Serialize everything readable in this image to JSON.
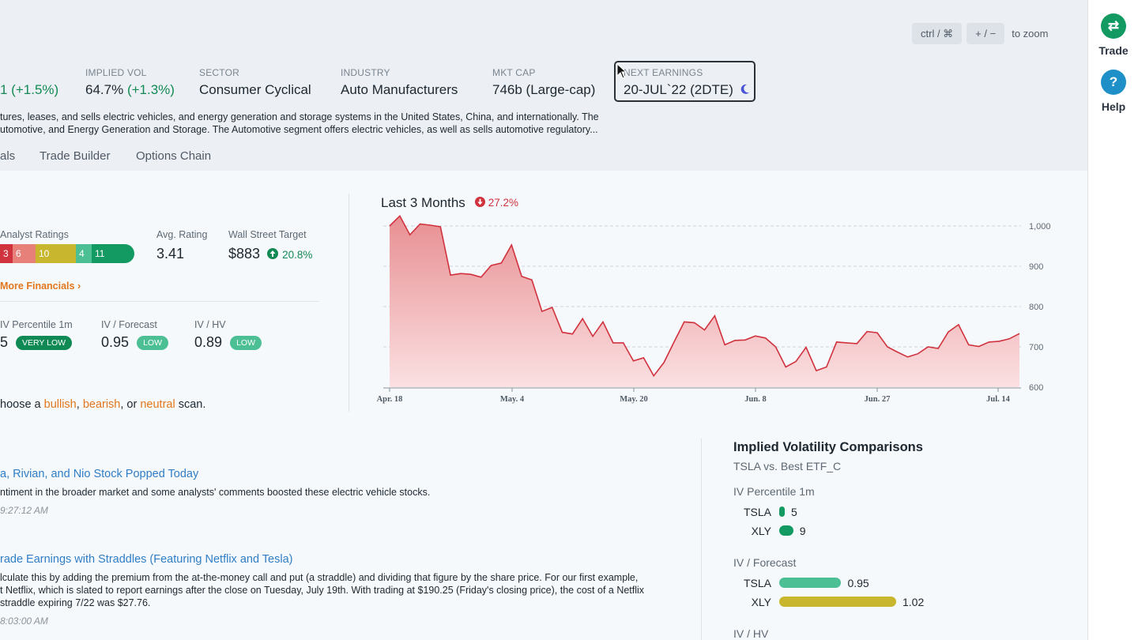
{
  "zoom_hint": {
    "key1": "ctrl / ⌘",
    "key2": "+ / −",
    "text": "to zoom"
  },
  "right_rail": {
    "trade": "Trade",
    "help": "Help",
    "trade_icon": "swap-arrows-icon",
    "help_icon": "question-icon"
  },
  "stats": {
    "price_change": "1 (+1.5%)",
    "iv_label": "IMPLIED VOL",
    "iv_value": "64.7%",
    "iv_change": "(+1.3%)",
    "sector_label": "SECTOR",
    "sector_value": "Consumer Cyclical",
    "industry_label": "INDUSTRY",
    "industry_value": "Auto Manufacturers",
    "mktcap_label": "MKT CAP",
    "mktcap_value": "746b (Large-cap)",
    "earnings_label": "NEXT EARNINGS",
    "earnings_value": "20-JUL`22 (2DTE)"
  },
  "description": {
    "line1": "tures, leases, and sells electric vehicles, and energy generation and storage systems in the United States, China, and internationally. The",
    "line2": "utomotive, and Energy Generation and Storage. The Automotive segment offers electric vehicles, as well as sells automotive regulatory..."
  },
  "tabs": [
    "als",
    "Trade Builder",
    "Options Chain"
  ],
  "summary": {
    "analyst_label": "Analyst Ratings",
    "ratings": [
      {
        "value": "3",
        "color": "#d0323e"
      },
      {
        "value": "6",
        "color": "#e8807a"
      },
      {
        "value": "10",
        "color": "#c9b62f"
      },
      {
        "value": "4",
        "color": "#4cbf94"
      },
      {
        "value": "11",
        "color": "#139a62"
      }
    ],
    "avg_label": "Avg. Rating",
    "avg_value": "3.41",
    "target_label": "Wall Street Target",
    "target_value": "$883",
    "target_change": "20.8%",
    "more_financials": "More Financials",
    "ivp_label": "IV Percentile 1m",
    "ivp_value": "5",
    "ivp_badge": "VERY LOW",
    "ivf_label": "IV / Forecast",
    "ivf_value": "0.95",
    "ivf_badge": "LOW",
    "ivhv_label": "IV / HV",
    "ivhv_value": "0.89",
    "ivhv_badge": "LOW",
    "scan_prefix": "hoose a ",
    "scan_bullish": "bullish",
    "scan_comma": ", ",
    "scan_bearish": "bearish",
    "scan_or": ", or ",
    "scan_neutral": "neutral",
    "scan_suffix": " scan."
  },
  "chart_data": {
    "type": "area",
    "title": "Last 3 Months",
    "change": "27.2%",
    "x_tick_labels": [
      "Apr. 18",
      "May. 4",
      "May. 20",
      "Jun. 8",
      "Jun. 27",
      "Jul. 14"
    ],
    "y_tick_labels": [
      "1,000",
      "900",
      "800",
      "700",
      "600"
    ],
    "ylim": [
      600,
      1025
    ],
    "grid": true,
    "color": "#d0323e",
    "values": [
      1000,
      1025,
      978,
      1005,
      1002,
      998,
      878,
      882,
      880,
      873,
      902,
      908,
      953,
      875,
      866,
      788,
      798,
      736,
      732,
      770,
      726,
      762,
      710,
      710,
      665,
      673,
      628,
      661,
      712,
      762,
      760,
      742,
      777,
      705,
      716,
      717,
      727,
      722,
      700,
      650,
      664,
      699,
      641,
      650,
      712,
      710,
      708,
      738,
      735,
      700,
      687,
      675,
      683,
      700,
      696,
      737,
      755,
      705,
      701,
      712,
      714,
      720,
      733
    ]
  },
  "news": [
    {
      "title": "a, Rivian, and Nio Stock Popped Today",
      "body1": "ntiment in the broader market and some analysts' comments boosted these electric vehicle stocks.",
      "body2": "",
      "body3": "",
      "time": "9:27:12 AM"
    },
    {
      "title": "rade Earnings with Straddles (Featuring Netflix and Tesla)",
      "body1": "lculate this by adding the premium from the at-the-money call and put (a straddle) and dividing that figure by the share price. For our first example,",
      "body2": "t Netflix, which is slated to report earnings after the close on Tuesday, July 19th. With trading at $190.25 (Friday's closing price), the cost of a Netflix",
      "body3": " straddle expiring 7/22 was $27.76.",
      "time": "8:03:00 AM"
    }
  ],
  "iv_comparisons": {
    "title": "Implied Volatility Comparisons",
    "subtitle": "TSLA vs. Best ETF_C",
    "sections": [
      {
        "label": "IV Percentile 1m",
        "rows": [
          {
            "name": "TSLA",
            "value": "5",
            "fraction": 0.04,
            "color": "#139a62"
          },
          {
            "name": "XLY",
            "value": "9",
            "fraction": 0.12,
            "color": "#139a62"
          }
        ]
      },
      {
        "label": "IV / Forecast",
        "rows": [
          {
            "name": "TSLA",
            "value": "0.95",
            "fraction": 0.53,
            "color": "#4cbf94"
          },
          {
            "name": "XLY",
            "value": "1.02",
            "fraction": 1.0,
            "color": "#c9b62f"
          }
        ]
      },
      {
        "label": "IV / HV",
        "rows": []
      }
    ]
  }
}
